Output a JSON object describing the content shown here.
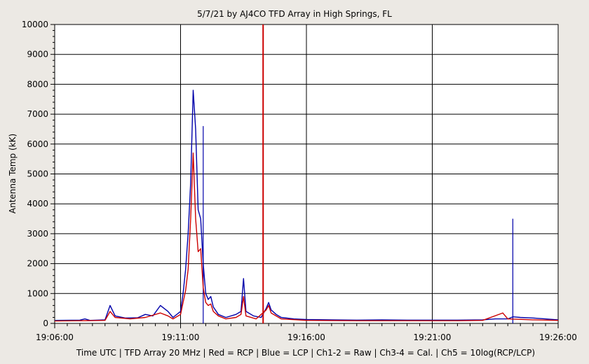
{
  "chart_data": {
    "type": "line",
    "title": "5/7/21  by  AJ4CO TFD Array  in  High Springs, FL",
    "ylabel": "Antenna Temp (kK)",
    "xlabel": "Time UTC | TFD Array 20 MHz | Red = RCP | Blue = LCP | Ch1-2 = Raw | Ch3-4 = Cal. | Ch5 = 10log(RCP/LCP)",
    "ylim": [
      0,
      10000
    ],
    "yticks": [
      0,
      1000,
      2000,
      3000,
      4000,
      5000,
      6000,
      7000,
      8000,
      9000,
      10000
    ],
    "xlim_minutes": [
      0,
      20
    ],
    "xticks": [
      {
        "label": "19:06:00",
        "minute": 0
      },
      {
        "label": "19:11:00",
        "minute": 5
      },
      {
        "label": "19:16:00",
        "minute": 10
      },
      {
        "label": "19:21:00",
        "minute": 15
      },
      {
        "label": "19:26:00",
        "minute": 20
      }
    ],
    "grid": true,
    "series": [
      {
        "name": "LCP",
        "color": "#0000aa",
        "points": [
          [
            0,
            100
          ],
          [
            1.0,
            110
          ],
          [
            1.2,
            150
          ],
          [
            1.4,
            100
          ],
          [
            2.0,
            120
          ],
          [
            2.2,
            600
          ],
          [
            2.4,
            250
          ],
          [
            2.8,
            180
          ],
          [
            3.3,
            190
          ],
          [
            3.6,
            300
          ],
          [
            3.9,
            250
          ],
          [
            4.2,
            600
          ],
          [
            4.5,
            400
          ],
          [
            4.7,
            200
          ],
          [
            5.0,
            400
          ],
          [
            5.1,
            1000
          ],
          [
            5.2,
            1800
          ],
          [
            5.3,
            3000
          ],
          [
            5.4,
            4700
          ],
          [
            5.5,
            7800
          ],
          [
            5.6,
            6500
          ],
          [
            5.7,
            3800
          ],
          [
            5.8,
            3500
          ],
          [
            5.9,
            2000
          ],
          [
            6.0,
            1000
          ],
          [
            6.1,
            800
          ],
          [
            6.2,
            900
          ],
          [
            6.3,
            550
          ],
          [
            6.5,
            300
          ],
          [
            6.8,
            200
          ],
          [
            7.2,
            300
          ],
          [
            7.4,
            400
          ],
          [
            7.5,
            1500
          ],
          [
            7.6,
            400
          ],
          [
            7.9,
            250
          ],
          [
            8.2,
            200
          ],
          [
            8.4,
            500
          ],
          [
            8.5,
            700
          ],
          [
            8.6,
            450
          ],
          [
            8.8,
            300
          ],
          [
            9.0,
            200
          ],
          [
            9.5,
            150
          ],
          [
            10.0,
            130
          ],
          [
            11.0,
            120
          ],
          [
            12.0,
            110
          ],
          [
            13.0,
            120
          ],
          [
            14.0,
            110
          ],
          [
            15.0,
            110
          ],
          [
            16.0,
            110
          ],
          [
            17.0,
            120
          ],
          [
            17.5,
            150
          ],
          [
            17.8,
            150
          ],
          [
            18.0,
            150
          ],
          [
            18.2,
            220
          ],
          [
            18.5,
            200
          ],
          [
            19.0,
            180
          ],
          [
            19.5,
            150
          ],
          [
            20.0,
            120
          ]
        ],
        "spikes": [
          {
            "x": 5.9,
            "y": 6600
          },
          {
            "x": 18.2,
            "y": 3500
          }
        ]
      },
      {
        "name": "RCP",
        "color": "#cc0000",
        "points": [
          [
            0,
            80
          ],
          [
            1.0,
            90
          ],
          [
            2.0,
            100
          ],
          [
            2.2,
            400
          ],
          [
            2.4,
            200
          ],
          [
            3.0,
            150
          ],
          [
            3.6,
            200
          ],
          [
            4.2,
            350
          ],
          [
            4.5,
            250
          ],
          [
            4.7,
            150
          ],
          [
            5.0,
            300
          ],
          [
            5.1,
            700
          ],
          [
            5.2,
            1100
          ],
          [
            5.3,
            1800
          ],
          [
            5.4,
            3500
          ],
          [
            5.5,
            5700
          ],
          [
            5.6,
            3500
          ],
          [
            5.7,
            2400
          ],
          [
            5.8,
            2500
          ],
          [
            5.9,
            1200
          ],
          [
            6.0,
            700
          ],
          [
            6.1,
            600
          ],
          [
            6.2,
            650
          ],
          [
            6.3,
            400
          ],
          [
            6.5,
            250
          ],
          [
            6.8,
            150
          ],
          [
            7.2,
            200
          ],
          [
            7.4,
            300
          ],
          [
            7.5,
            900
          ],
          [
            7.6,
            250
          ],
          [
            8.0,
            150
          ],
          [
            8.4,
            450
          ],
          [
            8.5,
            600
          ],
          [
            8.6,
            350
          ],
          [
            9.0,
            150
          ],
          [
            10.0,
            100
          ],
          [
            12.0,
            90
          ],
          [
            14.0,
            90
          ],
          [
            16.0,
            90
          ],
          [
            17.0,
            100
          ],
          [
            17.8,
            350
          ],
          [
            18.0,
            150
          ],
          [
            19.0,
            120
          ],
          [
            20.0,
            100
          ]
        ],
        "spikes": [
          {
            "x": 8.28,
            "y": 10000
          }
        ]
      }
    ]
  }
}
